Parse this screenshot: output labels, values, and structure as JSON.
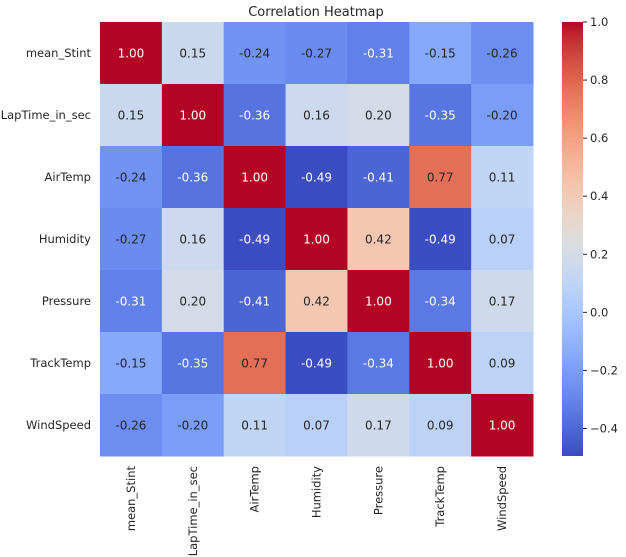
{
  "chart_data": {
    "type": "heatmap",
    "title": "Correlation Heatmap",
    "xlabel": "",
    "ylabel": "",
    "colormap": "coolwarm",
    "x_labels": [
      "mean_Stint",
      "LapTime_in_sec",
      "AirTemp",
      "Humidity",
      "Pressure",
      "TrackTemp",
      "WindSpeed"
    ],
    "y_labels": [
      "mean_Stint",
      "LapTime_in_sec",
      "AirTemp",
      "Humidity",
      "Pressure",
      "TrackTemp",
      "WindSpeed"
    ],
    "values": [
      [
        1.0,
        0.15,
        -0.24,
        -0.27,
        -0.31,
        -0.15,
        -0.26
      ],
      [
        0.15,
        1.0,
        -0.36,
        0.16,
        0.2,
        -0.35,
        -0.2
      ],
      [
        -0.24,
        -0.36,
        1.0,
        -0.49,
        -0.41,
        0.77,
        0.11
      ],
      [
        -0.27,
        0.16,
        -0.49,
        1.0,
        0.42,
        -0.49,
        0.07
      ],
      [
        -0.31,
        0.2,
        -0.41,
        0.42,
        1.0,
        -0.34,
        0.17
      ],
      [
        -0.15,
        -0.35,
        0.77,
        -0.49,
        -0.34,
        1.0,
        0.09
      ],
      [
        -0.26,
        -0.2,
        0.11,
        0.07,
        0.17,
        0.09,
        1.0
      ]
    ],
    "cell_labels": [
      [
        "1.00",
        "0.15",
        "-0.24",
        "-0.27",
        "-0.31",
        "-0.15",
        "-0.26"
      ],
      [
        "0.15",
        "1.00",
        "-0.36",
        "0.16",
        "0.20",
        "-0.35",
        "-0.20"
      ],
      [
        "-0.24",
        "-0.36",
        "1.00",
        "-0.49",
        "-0.41",
        "0.77",
        "0.11"
      ],
      [
        "-0.27",
        "0.16",
        "-0.49",
        "1.00",
        "0.42",
        "-0.49",
        "0.07"
      ],
      [
        "-0.31",
        "0.20",
        "-0.41",
        "0.42",
        "1.00",
        "-0.34",
        "0.17"
      ],
      [
        "-0.15",
        "-0.35",
        "0.77",
        "-0.49",
        "-0.34",
        "1.00",
        "0.09"
      ],
      [
        "-0.26",
        "-0.20",
        "0.11",
        "0.07",
        "0.17",
        "0.09",
        "1.00"
      ]
    ],
    "colorbar": {
      "vmin": -0.4947,
      "vmax": 1.0,
      "ticks": [
        1.0,
        0.8,
        0.6,
        0.4,
        0.2,
        0.0,
        -0.2,
        -0.4
      ],
      "tick_labels": [
        "1.0",
        "0.8",
        "0.6",
        "0.4",
        "0.2",
        "0.0",
        "−0.2",
        "−0.4"
      ]
    },
    "annot_colors": {
      "light_text": "#ffffff",
      "dark_text": "#262626"
    },
    "grid": false,
    "legend": "colorbar-right"
  }
}
